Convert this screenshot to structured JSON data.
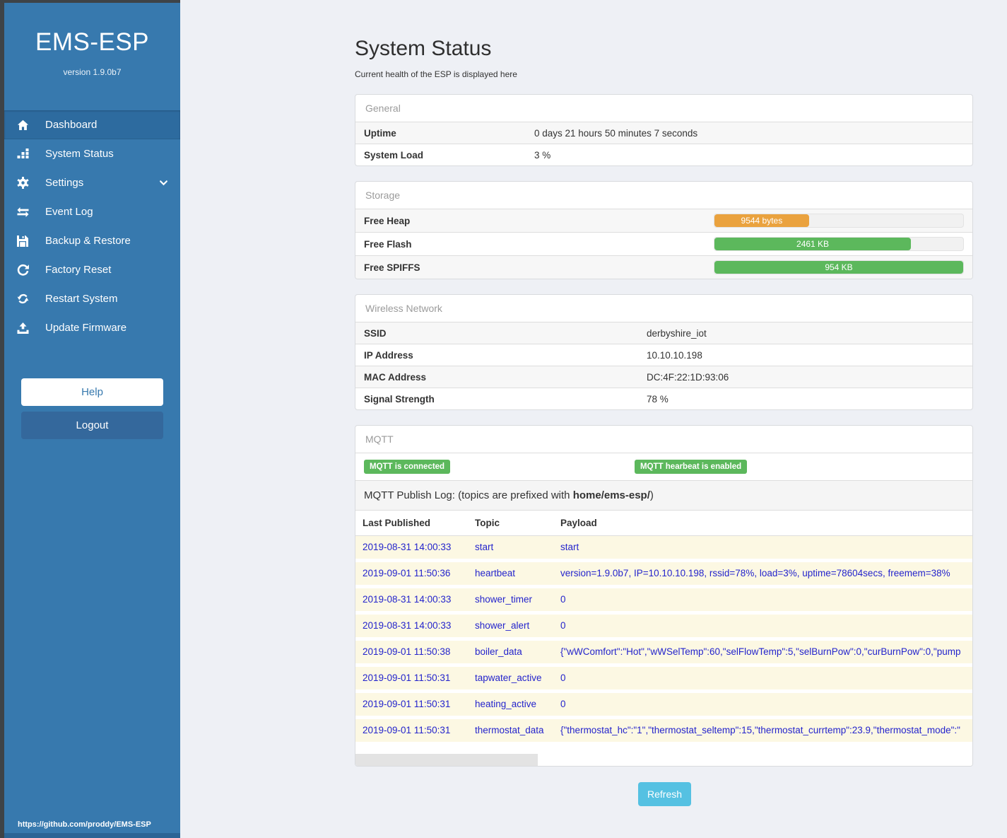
{
  "colors": {
    "sidebar_blue": "#3779ae",
    "active_item_blue": "#2d6b9f",
    "dark_frame": "#3e4347",
    "badge_green": "#5cb85c",
    "heap_orange": "#eaa23e",
    "bar_green": "#5cb85c",
    "refresh_blue": "#55c1e2",
    "log_text_blue": "#2424cc",
    "log_row_yellow": "#fcf8e3"
  },
  "sidebar": {
    "title": "EMS-ESP",
    "version": "version 1.9.0b7",
    "menu": [
      {
        "label": "Dashboard",
        "icon": "home-icon",
        "active": true
      },
      {
        "label": "System Status",
        "icon": "system-status-icon",
        "active": false
      },
      {
        "label": "Settings",
        "icon": "gear-icon",
        "active": false,
        "chevron": true
      },
      {
        "label": "Event Log",
        "icon": "exchange-icon",
        "active": false
      },
      {
        "label": "Backup & Restore",
        "icon": "save-icon",
        "active": false
      },
      {
        "label": "Factory Reset",
        "icon": "rotate-right-icon",
        "active": false
      },
      {
        "label": "Restart System",
        "icon": "sync-icon",
        "active": false
      },
      {
        "label": "Update Firmware",
        "icon": "upload-icon",
        "active": false
      }
    ],
    "help_label": "Help",
    "logout_label": "Logout",
    "footer_link": "https://github.com/proddy/EMS-ESP"
  },
  "header": {
    "title": "System Status",
    "subtitle": "Current health of the ESP is displayed here"
  },
  "panels": {
    "general": {
      "title": "General",
      "rows": [
        {
          "label": "Uptime",
          "value": "0 days 21 hours 50 minutes 7 seconds"
        },
        {
          "label": "System Load",
          "value": "3 %"
        }
      ]
    },
    "storage": {
      "title": "Storage",
      "rows": [
        {
          "label": "Free Heap",
          "value": "9544 bytes",
          "percent": 38,
          "color": "#eaa23e"
        },
        {
          "label": "Free Flash",
          "value": "2461 KB",
          "percent": 79,
          "color": "#5cb85c"
        },
        {
          "label": "Free SPIFFS",
          "value": "954 KB",
          "percent": 100,
          "color": "#5cb85c"
        }
      ]
    },
    "wireless": {
      "title": "Wireless Network",
      "rows": [
        {
          "label": "SSID",
          "value": "derbyshire_iot"
        },
        {
          "label": "IP Address",
          "value": "10.10.10.198"
        },
        {
          "label": "MAC Address",
          "value": "DC:4F:22:1D:93:06"
        },
        {
          "label": "Signal Strength",
          "value": "78 %"
        }
      ]
    },
    "mqtt": {
      "title": "MQTT",
      "badge_connected": "MQTT is connected",
      "badge_heartbeat": "MQTT hearbeat is enabled",
      "log_label_prefix": "MQTT Publish Log: (topics are prefixed with ",
      "log_label_bold": "home/ems-esp/",
      "log_label_suffix": ")",
      "columns": {
        "date": "Last Published",
        "topic": "Topic",
        "payload": "Payload"
      },
      "rows": [
        {
          "date": "2019-08-31 14:00:33",
          "topic": "start",
          "payload": "start"
        },
        {
          "date": "2019-09-01 11:50:36",
          "topic": "heartbeat",
          "payload": "version=1.9.0b7, IP=10.10.10.198, rssid=78%, load=3%, uptime=78604secs, freemem=38%"
        },
        {
          "date": "2019-08-31 14:00:33",
          "topic": "shower_timer",
          "payload": "0"
        },
        {
          "date": "2019-08-31 14:00:33",
          "topic": "shower_alert",
          "payload": "0"
        },
        {
          "date": "2019-09-01 11:50:38",
          "topic": "boiler_data",
          "payload": "{\"wWComfort\":\"Hot\",\"wWSelTemp\":60,\"selFlowTemp\":5,\"selBurnPow\":0,\"curBurnPow\":0,\"pump"
        },
        {
          "date": "2019-09-01 11:50:31",
          "topic": "tapwater_active",
          "payload": "0"
        },
        {
          "date": "2019-09-01 11:50:31",
          "topic": "heating_active",
          "payload": "0"
        },
        {
          "date": "2019-09-01 11:50:31",
          "topic": "thermostat_data",
          "payload": "{\"thermostat_hc\":\"1\",\"thermostat_seltemp\":15,\"thermostat_currtemp\":23.9,\"thermostat_mode\":\""
        }
      ]
    }
  },
  "refresh_label": "Refresh"
}
